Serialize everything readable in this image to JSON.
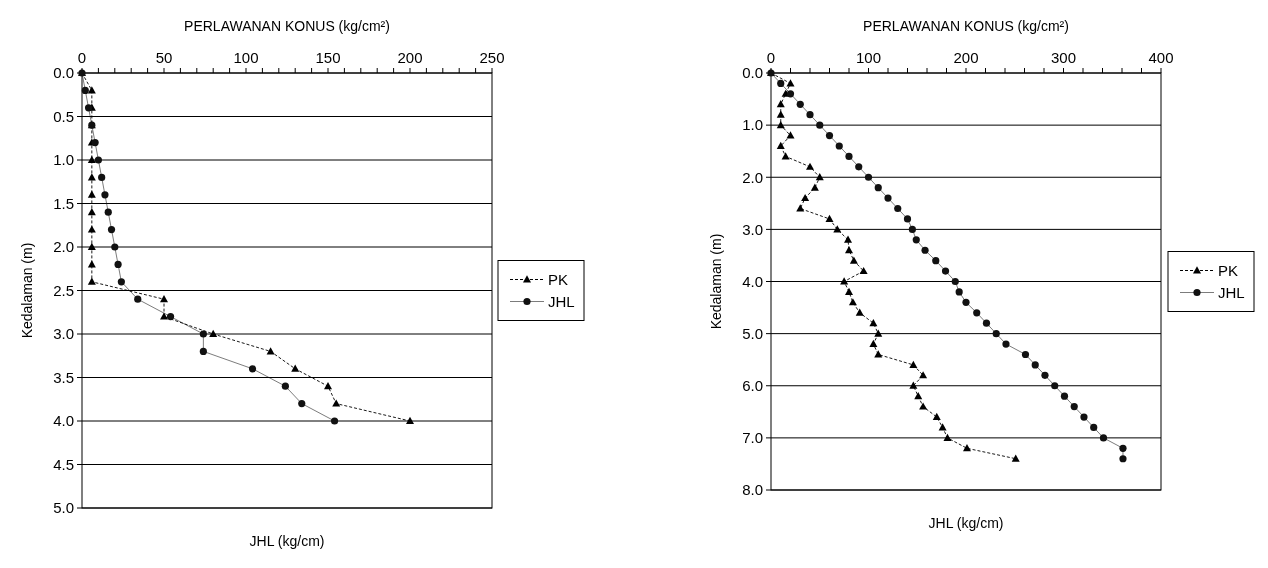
{
  "chart_data": [
    {
      "type": "line",
      "xlabel": "PERLAWANAN KONUS (kg/cm²)",
      "annotations": [
        "JHL (kg/cm)"
      ],
      "ylabel": "Kedalaman (m)",
      "xlim": [
        0,
        250
      ],
      "xticks": [
        0,
        {
          "value": 10,
          "label": null
        },
        {
          "value": 20,
          "label": null
        },
        {
          "value": 30,
          "label": null
        },
        {
          "value": 40,
          "label": null
        },
        50,
        {
          "value": 60,
          "label": null
        },
        {
          "value": 70,
          "label": null
        },
        {
          "value": 80,
          "label": null
        },
        {
          "value": 90,
          "label": null
        },
        100,
        {
          "value": 110,
          "label": null
        },
        {
          "value": 120,
          "label": null
        },
        {
          "value": 130,
          "label": null
        },
        {
          "value": 140,
          "label": null
        },
        150,
        {
          "value": 160,
          "label": null
        },
        {
          "value": 170,
          "label": null
        },
        {
          "value": 180,
          "label": null
        },
        {
          "value": 190,
          "label": null
        },
        200,
        {
          "value": 210,
          "label": null
        },
        {
          "value": 220,
          "label": null
        },
        {
          "value": 230,
          "label": null
        },
        {
          "value": 240,
          "label": null
        },
        250
      ],
      "ylim": [
        5,
        0
      ],
      "yticks": [
        {
          "value": 0,
          "label": "0.0"
        },
        {
          "value": 0.5,
          "label": "0.5"
        },
        {
          "value": 1,
          "label": "1.0"
        },
        {
          "value": 1.5,
          "label": "1.5"
        },
        {
          "value": 2,
          "label": "2.0"
        },
        {
          "value": 2.5,
          "label": "2.5"
        },
        {
          "value": 3,
          "label": "3.0"
        },
        {
          "value": 3.5,
          "label": "3.5"
        },
        {
          "value": 4,
          "label": "4.0"
        },
        {
          "value": 4.5,
          "label": "4.5"
        },
        {
          "value": 5,
          "label": "5.0"
        }
      ],
      "grid": "y",
      "legend": "right",
      "series": [
        {
          "name": "PK",
          "color": "#000000",
          "marker": "triangle",
          "line_style": "dashed",
          "x": [
            0,
            6,
            6,
            6,
            6,
            6,
            6,
            6,
            6,
            6,
            6,
            6,
            6,
            50,
            50,
            80,
            115,
            130,
            150,
            155,
            200
          ],
          "values": [
            0,
            0.2,
            0.4,
            0.6,
            0.8,
            1.0,
            1.2,
            1.4,
            1.6,
            1.8,
            2.0,
            2.2,
            2.4,
            2.6,
            2.8,
            3.0,
            3.2,
            3.4,
            3.6,
            3.8,
            4.0
          ]
        },
        {
          "name": "JHL",
          "color": "#111111",
          "marker": "circle",
          "line_style": "solid",
          "x": [
            0,
            2,
            4,
            6,
            8,
            10,
            12,
            14,
            16,
            18,
            20,
            22,
            24,
            34,
            54,
            74,
            74,
            104,
            124,
            134,
            154
          ],
          "values": [
            0,
            0.2,
            0.4,
            0.6,
            0.8,
            1.0,
            1.2,
            1.4,
            1.6,
            1.8,
            2.0,
            2.2,
            2.4,
            2.6,
            2.8,
            3.0,
            3.2,
            3.4,
            3.6,
            3.8,
            4.0
          ]
        }
      ]
    },
    {
      "type": "line",
      "xlabel": "PERLAWANAN KONUS (kg/cm²)",
      "annotations": [
        "JHL (kg/cm)"
      ],
      "ylabel": "Kedalaman (m)",
      "xlim": [
        0,
        400
      ],
      "xticks": [
        0,
        {
          "value": 20,
          "label": null
        },
        {
          "value": 40,
          "label": null
        },
        {
          "value": 60,
          "label": null
        },
        {
          "value": 80,
          "label": null
        },
        100,
        {
          "value": 120,
          "label": null
        },
        {
          "value": 140,
          "label": null
        },
        {
          "value": 160,
          "label": null
        },
        {
          "value": 180,
          "label": null
        },
        200,
        {
          "value": 220,
          "label": null
        },
        {
          "value": 240,
          "label": null
        },
        {
          "value": 260,
          "label": null
        },
        {
          "value": 280,
          "label": null
        },
        300,
        {
          "value": 320,
          "label": null
        },
        {
          "value": 340,
          "label": null
        },
        {
          "value": 360,
          "label": null
        },
        {
          "value": 380,
          "label": null
        },
        400
      ],
      "ylim": [
        8,
        0
      ],
      "yticks": [
        {
          "value": 0,
          "label": "0.0"
        },
        {
          "value": 1,
          "label": "1.0"
        },
        {
          "value": 2,
          "label": "2.0"
        },
        {
          "value": 3,
          "label": "3.0"
        },
        {
          "value": 4,
          "label": "4.0"
        },
        {
          "value": 5,
          "label": "5.0"
        },
        {
          "value": 6,
          "label": "6.0"
        },
        {
          "value": 7,
          "label": "7.0"
        },
        {
          "value": 8,
          "label": "8.0"
        }
      ],
      "grid": "y",
      "legend": "right",
      "series": [
        {
          "name": "PK",
          "color": "#000000",
          "marker": "triangle",
          "line_style": "dashed",
          "x": [
            0,
            20,
            15,
            10,
            10,
            10,
            20,
            10,
            15,
            40,
            50,
            45,
            35,
            30,
            60,
            68,
            79,
            80,
            85,
            95,
            75,
            80,
            84,
            91,
            105,
            110,
            105,
            110,
            146,
            156,
            146,
            151,
            156,
            170,
            176,
            181,
            201,
            251
          ],
          "values": [
            0,
            0.2,
            0.4,
            0.6,
            0.8,
            1.0,
            1.2,
            1.4,
            1.6,
            1.8,
            2.0,
            2.2,
            2.4,
            2.6,
            2.8,
            3.0,
            3.2,
            3.4,
            3.6,
            3.8,
            4.0,
            4.2,
            4.4,
            4.6,
            4.8,
            5.0,
            5.2,
            5.4,
            5.6,
            5.8,
            6.0,
            6.2,
            6.4,
            6.6,
            6.8,
            7.0,
            7.2,
            7.4
          ]
        },
        {
          "name": "JHL",
          "color": "#111111",
          "marker": "circle",
          "line_style": "solid",
          "x": [
            0,
            10,
            20,
            30,
            40,
            50,
            60,
            70,
            80,
            90,
            100,
            110,
            120,
            130,
            140,
            145,
            149,
            158,
            169,
            179,
            189,
            193,
            200,
            211,
            221,
            231,
            241,
            261,
            271,
            281,
            291,
            301,
            311,
            321,
            331,
            341,
            361,
            361
          ],
          "values": [
            0,
            0.2,
            0.4,
            0.6,
            0.8,
            1.0,
            1.2,
            1.4,
            1.6,
            1.8,
            2.0,
            2.2,
            2.4,
            2.6,
            2.8,
            3.0,
            3.2,
            3.4,
            3.6,
            3.8,
            4.0,
            4.2,
            4.4,
            4.6,
            4.8,
            5.0,
            5.2,
            5.4,
            5.6,
            5.8,
            6.0,
            6.2,
            6.4,
            6.6,
            6.8,
            7.0,
            7.2,
            7.4
          ]
        }
      ]
    }
  ]
}
